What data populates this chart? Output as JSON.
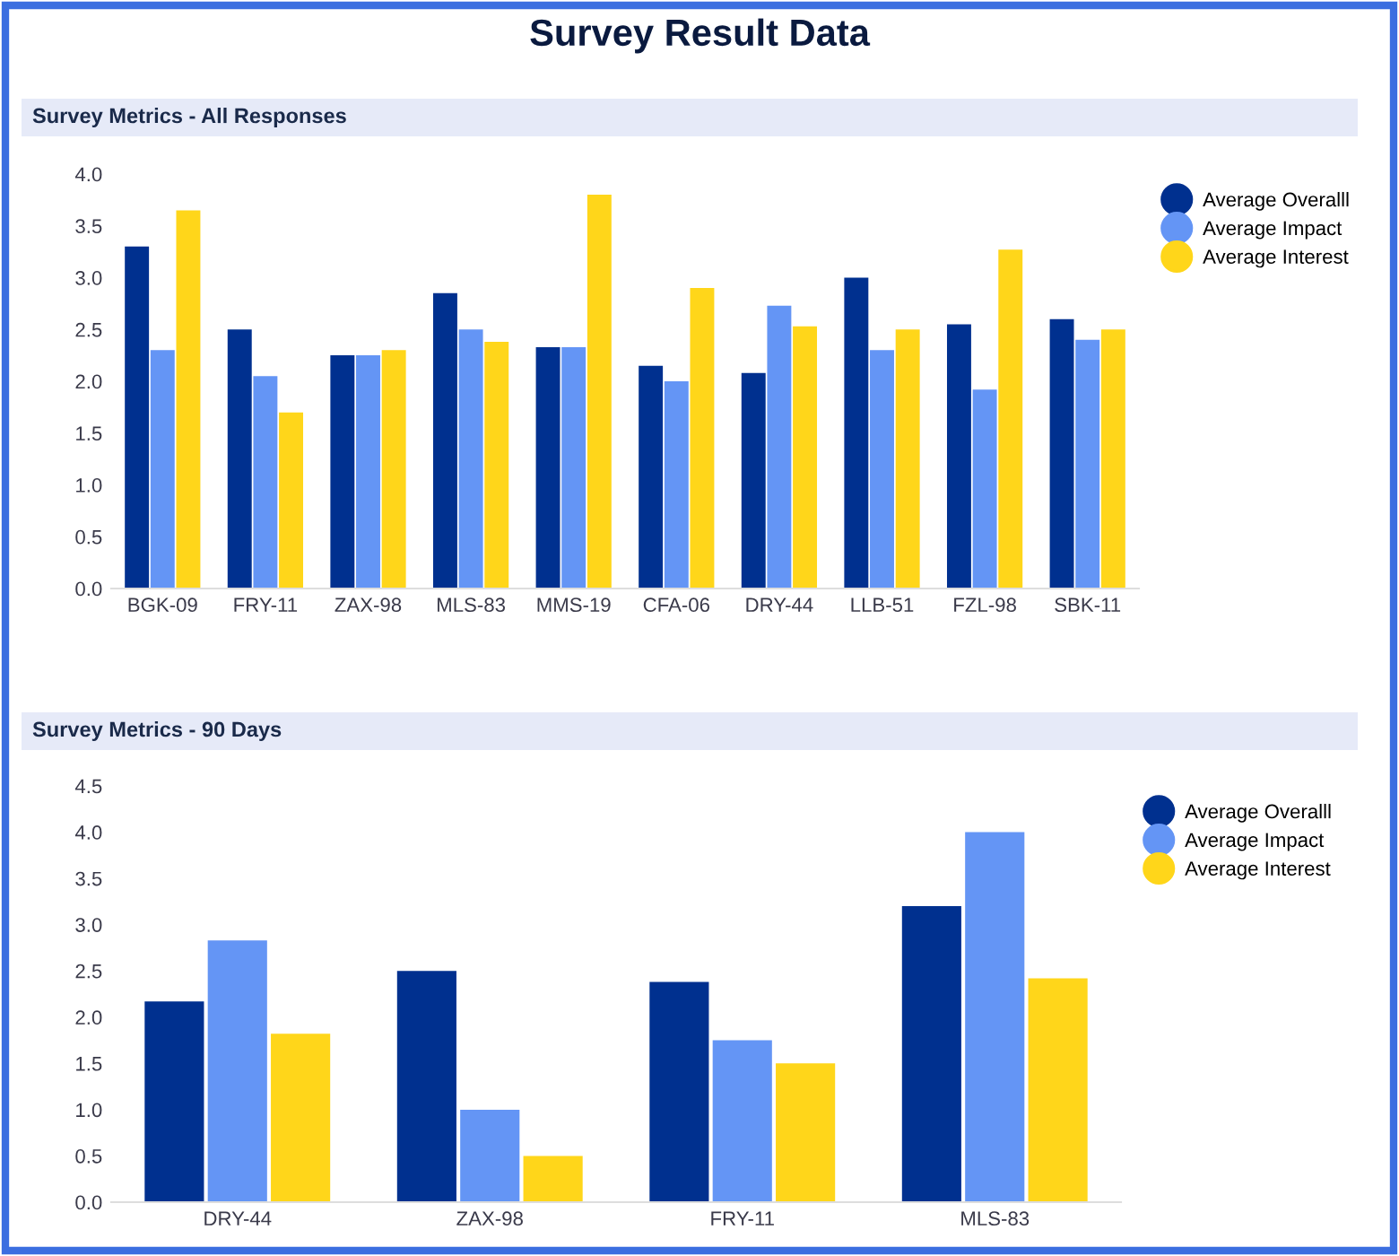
{
  "chart_data": [
    {
      "type": "bar",
      "title": "Survey Result Data",
      "subtitle": "Survey Metrics - All Responses",
      "categories": [
        "BGK-09",
        "FRY-11",
        "ZAX-98",
        "MLS-83",
        "MMS-19",
        "CFA-06",
        "DRY-44",
        "LLB-51",
        "FZL-98",
        "SBK-11"
      ],
      "series": [
        {
          "name": "Average Overalll",
          "color": "#00308f",
          "values": [
            3.3,
            2.5,
            2.25,
            2.85,
            2.33,
            2.15,
            2.08,
            3.0,
            2.55,
            2.6
          ]
        },
        {
          "name": "Average Impact",
          "color": "#6495f5",
          "values": [
            2.3,
            2.05,
            2.25,
            2.5,
            2.33,
            2.0,
            2.73,
            2.3,
            1.92,
            2.4
          ]
        },
        {
          "name": "Average Interest",
          "color": "#ffd61a",
          "values": [
            3.65,
            1.7,
            2.3,
            2.38,
            3.8,
            2.9,
            2.53,
            2.5,
            3.27,
            2.5
          ]
        }
      ],
      "ylim": [
        0,
        4
      ],
      "yticks": [
        {
          "value": 0,
          "label": "0.0"
        },
        0.5,
        {
          "value": 1,
          "label": "1.0"
        },
        1.5,
        {
          "value": 2,
          "label": "2.0"
        },
        2.5,
        {
          "value": 3,
          "label": "3.0"
        },
        3.5,
        {
          "value": 4,
          "label": "4.0"
        }
      ],
      "grid": false,
      "legend": "right"
    },
    {
      "type": "bar",
      "title": "Survey Metrics - 90 Days",
      "categories": [
        "DRY-44",
        "ZAX-98",
        "FRY-11",
        "MLS-83"
      ],
      "series": [
        {
          "name": "Average Overalll",
          "color": "#00308f",
          "values": [
            2.17,
            2.5,
            2.38,
            3.2
          ]
        },
        {
          "name": "Average Impact",
          "color": "#6495f5",
          "values": [
            2.83,
            1.0,
            1.75,
            4.0
          ]
        },
        {
          "name": "Average Interest",
          "color": "#ffd61a",
          "values": [
            1.82,
            0.5,
            1.5,
            2.42
          ]
        }
      ],
      "ylim": [
        0,
        4.5
      ],
      "yticks": [
        {
          "value": 0,
          "label": "0.0"
        },
        0.5,
        {
          "value": 1,
          "label": "1.0"
        },
        1.5,
        {
          "value": 2,
          "label": "2.0"
        },
        2.5,
        {
          "value": 3,
          "label": "3.0"
        },
        3.5,
        {
          "value": 4,
          "label": "4.0"
        },
        4.5
      ],
      "grid": false,
      "legend": "right"
    }
  ]
}
